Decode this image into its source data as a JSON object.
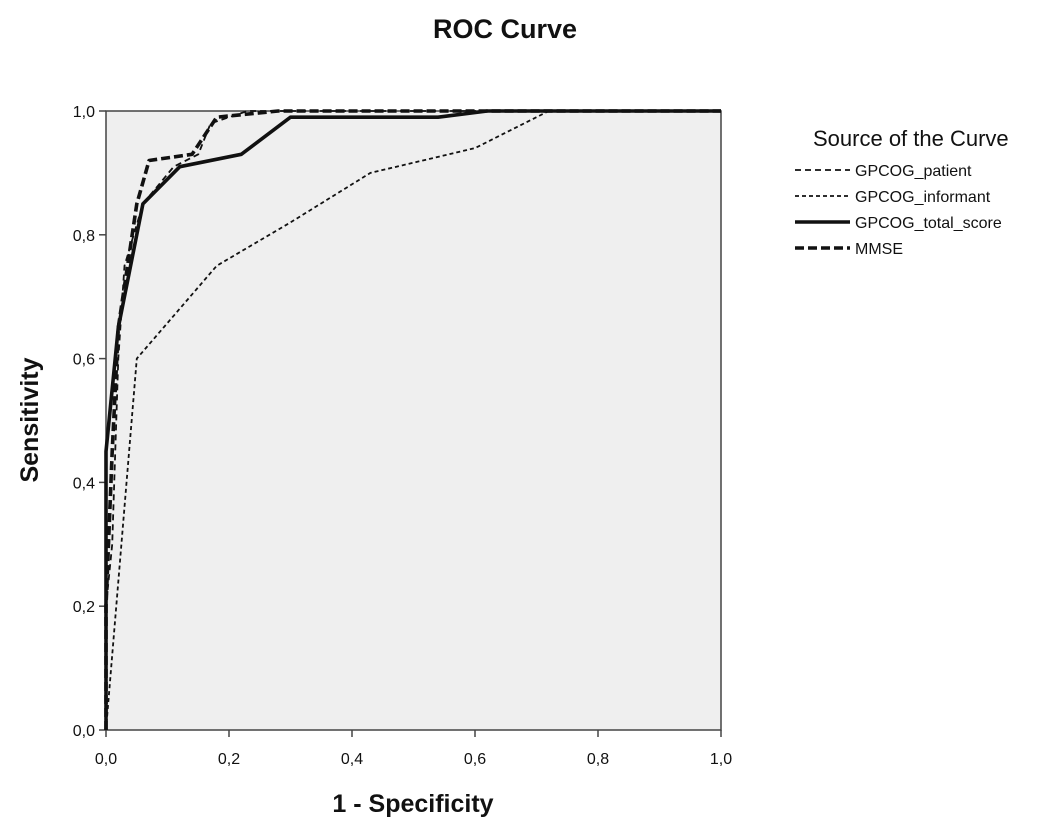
{
  "chart_data": {
    "type": "line",
    "title": "ROC Curve",
    "xlabel": "1 - Specificity",
    "ylabel": "Sensitivity",
    "xlim": [
      0,
      1
    ],
    "ylim": [
      0,
      1
    ],
    "xticks": [
      "0,0",
      "0,2",
      "0,4",
      "0,6",
      "0,8",
      "1,0"
    ],
    "yticks": [
      "0,0",
      "0,2",
      "0,4",
      "0,6",
      "0,8",
      "1,0"
    ],
    "grid": false,
    "legend": {
      "title": "Source of the Curve",
      "position": "right"
    },
    "colors": {
      "plot_background": "#efefef",
      "series": "#111111",
      "frame": "#444444"
    },
    "series": [
      {
        "name": "GPCOG_patient",
        "style": "dashed",
        "points": [
          [
            0,
            0
          ],
          [
            0,
            0.2
          ],
          [
            0.01,
            0.3
          ],
          [
            0.02,
            0.6
          ],
          [
            0.03,
            0.75
          ],
          [
            0.06,
            0.85
          ],
          [
            0.11,
            0.91
          ],
          [
            0.15,
            0.93
          ],
          [
            0.17,
            0.98
          ],
          [
            0.23,
            1.0
          ],
          [
            1.0,
            1.0
          ]
        ]
      },
      {
        "name": "GPCOG_informant",
        "style": "dotted",
        "points": [
          [
            0,
            0
          ],
          [
            0.05,
            0.6
          ],
          [
            0.18,
            0.75
          ],
          [
            0.3,
            0.82
          ],
          [
            0.43,
            0.9
          ],
          [
            0.6,
            0.94
          ],
          [
            0.72,
            1.0
          ],
          [
            1.0,
            1.0
          ]
        ]
      },
      {
        "name": "GPCOG_total_score",
        "style": "solid",
        "points": [
          [
            0,
            0
          ],
          [
            0,
            0.45
          ],
          [
            0.02,
            0.65
          ],
          [
            0.06,
            0.85
          ],
          [
            0.12,
            0.91
          ],
          [
            0.22,
            0.93
          ],
          [
            0.3,
            0.99
          ],
          [
            0.54,
            0.99
          ],
          [
            0.62,
            1.0
          ],
          [
            1.0,
            1.0
          ]
        ]
      },
      {
        "name": "MMSE",
        "style": "long-dash",
        "points": [
          [
            0,
            0
          ],
          [
            0,
            0.2
          ],
          [
            0.01,
            0.45
          ],
          [
            0.02,
            0.65
          ],
          [
            0.05,
            0.85
          ],
          [
            0.07,
            0.92
          ],
          [
            0.14,
            0.93
          ],
          [
            0.18,
            0.99
          ],
          [
            0.28,
            1.0
          ],
          [
            1.0,
            1.0
          ]
        ]
      }
    ]
  }
}
